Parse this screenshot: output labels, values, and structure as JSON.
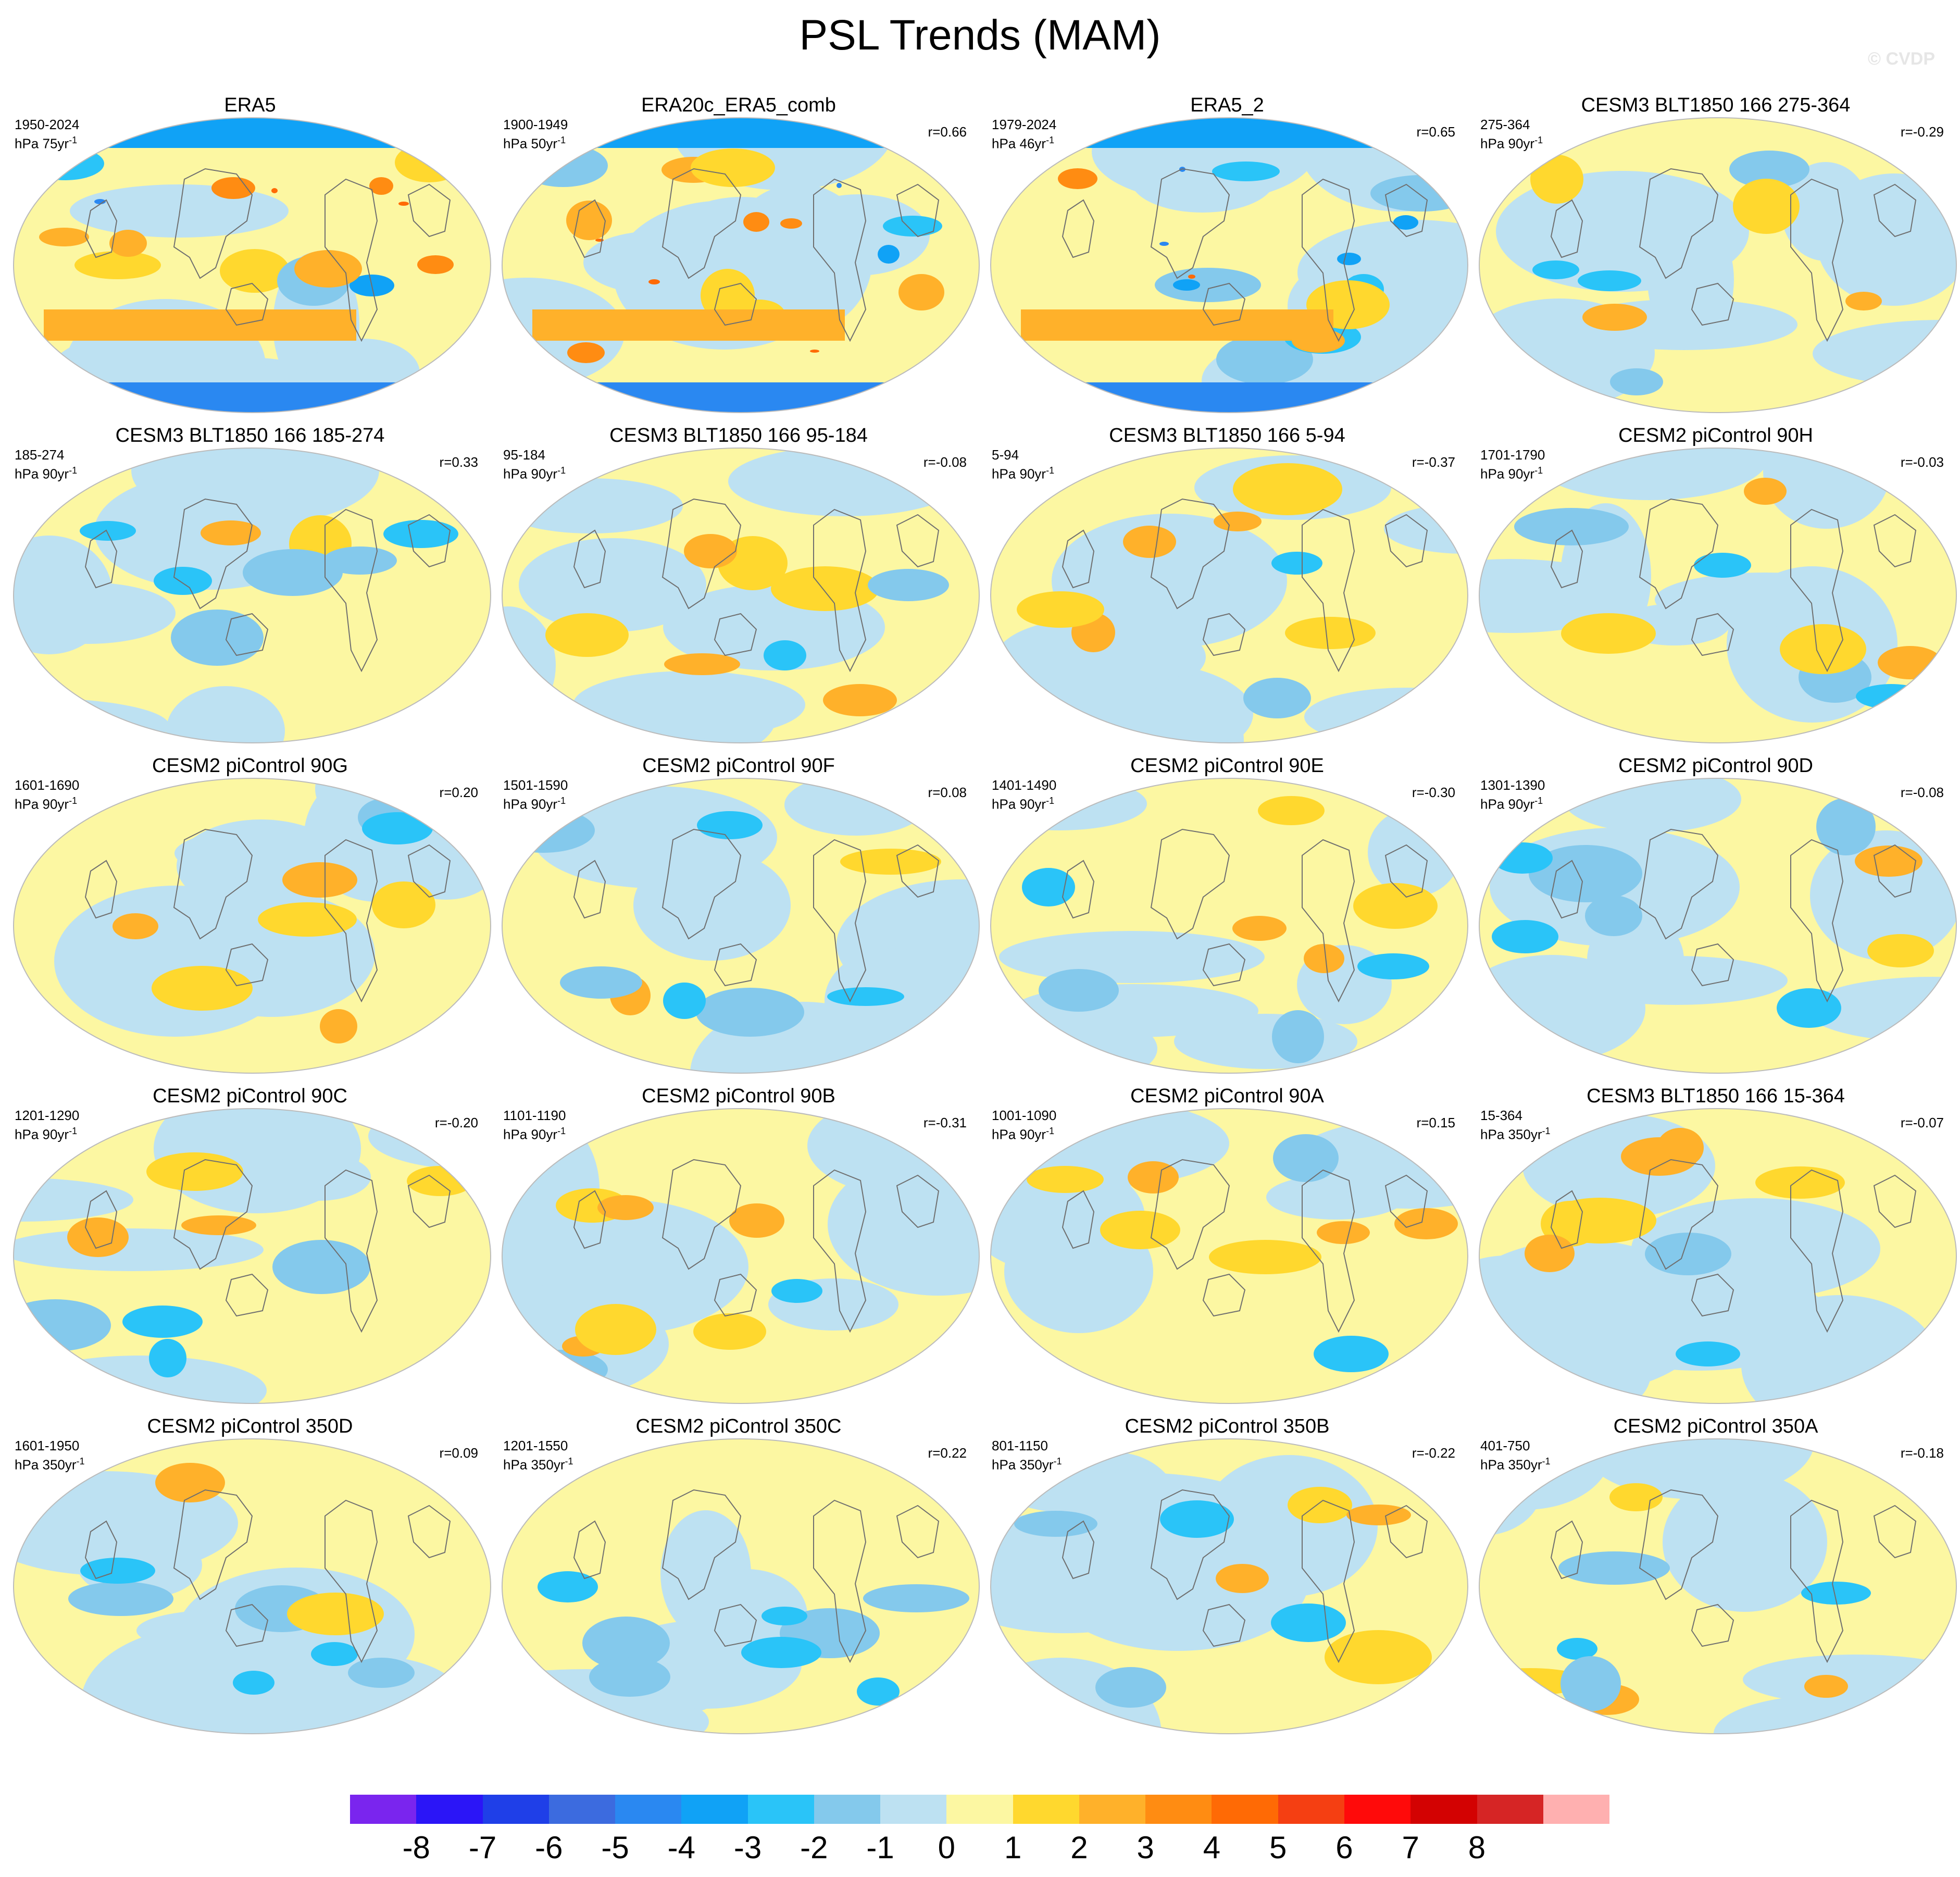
{
  "title": "PSL Trends (MAM)",
  "watermark": "© CVDP",
  "colorbar": {
    "colors": [
      "#7a25ee",
      "#2b15f7",
      "#1f3fe8",
      "#3c6bdf",
      "#2a88f1",
      "#10a2f6",
      "#2ac4f8",
      "#84c9ec",
      "#bde1f2",
      "#fcf7a2",
      "#ffd82e",
      "#ffb12a",
      "#ff8c12",
      "#ff6a05",
      "#f53f12",
      "#ff0a0a",
      "#d30202",
      "#d62525",
      "#ffb0b0"
    ],
    "tick_labels": [
      "-8",
      "-7",
      "-6",
      "-5",
      "-4",
      "-3",
      "-2",
      "-1",
      "0",
      "1",
      "2",
      "3",
      "4",
      "5",
      "6",
      "7",
      "8"
    ]
  },
  "panels": [
    {
      "title": "ERA5",
      "years": "1950-2024",
      "units": "hPa 75yr",
      "r": ""
    },
    {
      "title": "ERA20c_ERA5_comb",
      "years": "1900-1949",
      "units": "hPa 50yr",
      "r": "r=0.66"
    },
    {
      "title": "ERA5_2",
      "years": "1979-2024",
      "units": "hPa 46yr",
      "r": "r=0.65"
    },
    {
      "title": "CESM3 BLT1850 166 275-364",
      "years": "275-364",
      "units": "hPa 90yr",
      "r": "r=-0.29"
    },
    {
      "title": "CESM3 BLT1850 166 185-274",
      "years": "185-274",
      "units": "hPa 90yr",
      "r": "r=0.33"
    },
    {
      "title": "CESM3 BLT1850 166 95-184",
      "years": "95-184",
      "units": "hPa 90yr",
      "r": "r=-0.08"
    },
    {
      "title": "CESM3 BLT1850 166 5-94",
      "years": "5-94",
      "units": "hPa 90yr",
      "r": "r=-0.37"
    },
    {
      "title": "CESM2 piControl 90H",
      "years": "1701-1790",
      "units": "hPa 90yr",
      "r": "r=-0.03"
    },
    {
      "title": "CESM2 piControl 90G",
      "years": "1601-1690",
      "units": "hPa 90yr",
      "r": "r=0.20"
    },
    {
      "title": "CESM2 piControl 90F",
      "years": "1501-1590",
      "units": "hPa 90yr",
      "r": "r=0.08"
    },
    {
      "title": "CESM2 piControl 90E",
      "years": "1401-1490",
      "units": "hPa 90yr",
      "r": "r=-0.30"
    },
    {
      "title": "CESM2 piControl 90D",
      "years": "1301-1390",
      "units": "hPa 90yr",
      "r": "r=-0.08"
    },
    {
      "title": "CESM2 piControl 90C",
      "years": "1201-1290",
      "units": "hPa 90yr",
      "r": "r=-0.20"
    },
    {
      "title": "CESM2 piControl 90B",
      "years": "1101-1190",
      "units": "hPa 90yr",
      "r": "r=-0.31"
    },
    {
      "title": "CESM2 piControl 90A",
      "years": "1001-1090",
      "units": "hPa 90yr",
      "r": "r=0.15"
    },
    {
      "title": "CESM3 BLT1850 166 15-364",
      "years": "15-364",
      "units": "hPa 350yr",
      "r": "r=-0.07"
    },
    {
      "title": "CESM2 piControl 350D",
      "years": "1601-1950",
      "units": "hPa 350yr",
      "r": "r=0.09"
    },
    {
      "title": "CESM2 piControl 350C",
      "years": "1201-1550",
      "units": "hPa 350yr",
      "r": "r=0.22"
    },
    {
      "title": "CESM2 piControl 350B",
      "years": "801-1150",
      "units": "hPa 350yr",
      "r": "r=-0.22"
    },
    {
      "title": "CESM2 piControl 350A",
      "years": "401-750",
      "units": "hPa 350yr",
      "r": "r=-0.18"
    }
  ]
}
